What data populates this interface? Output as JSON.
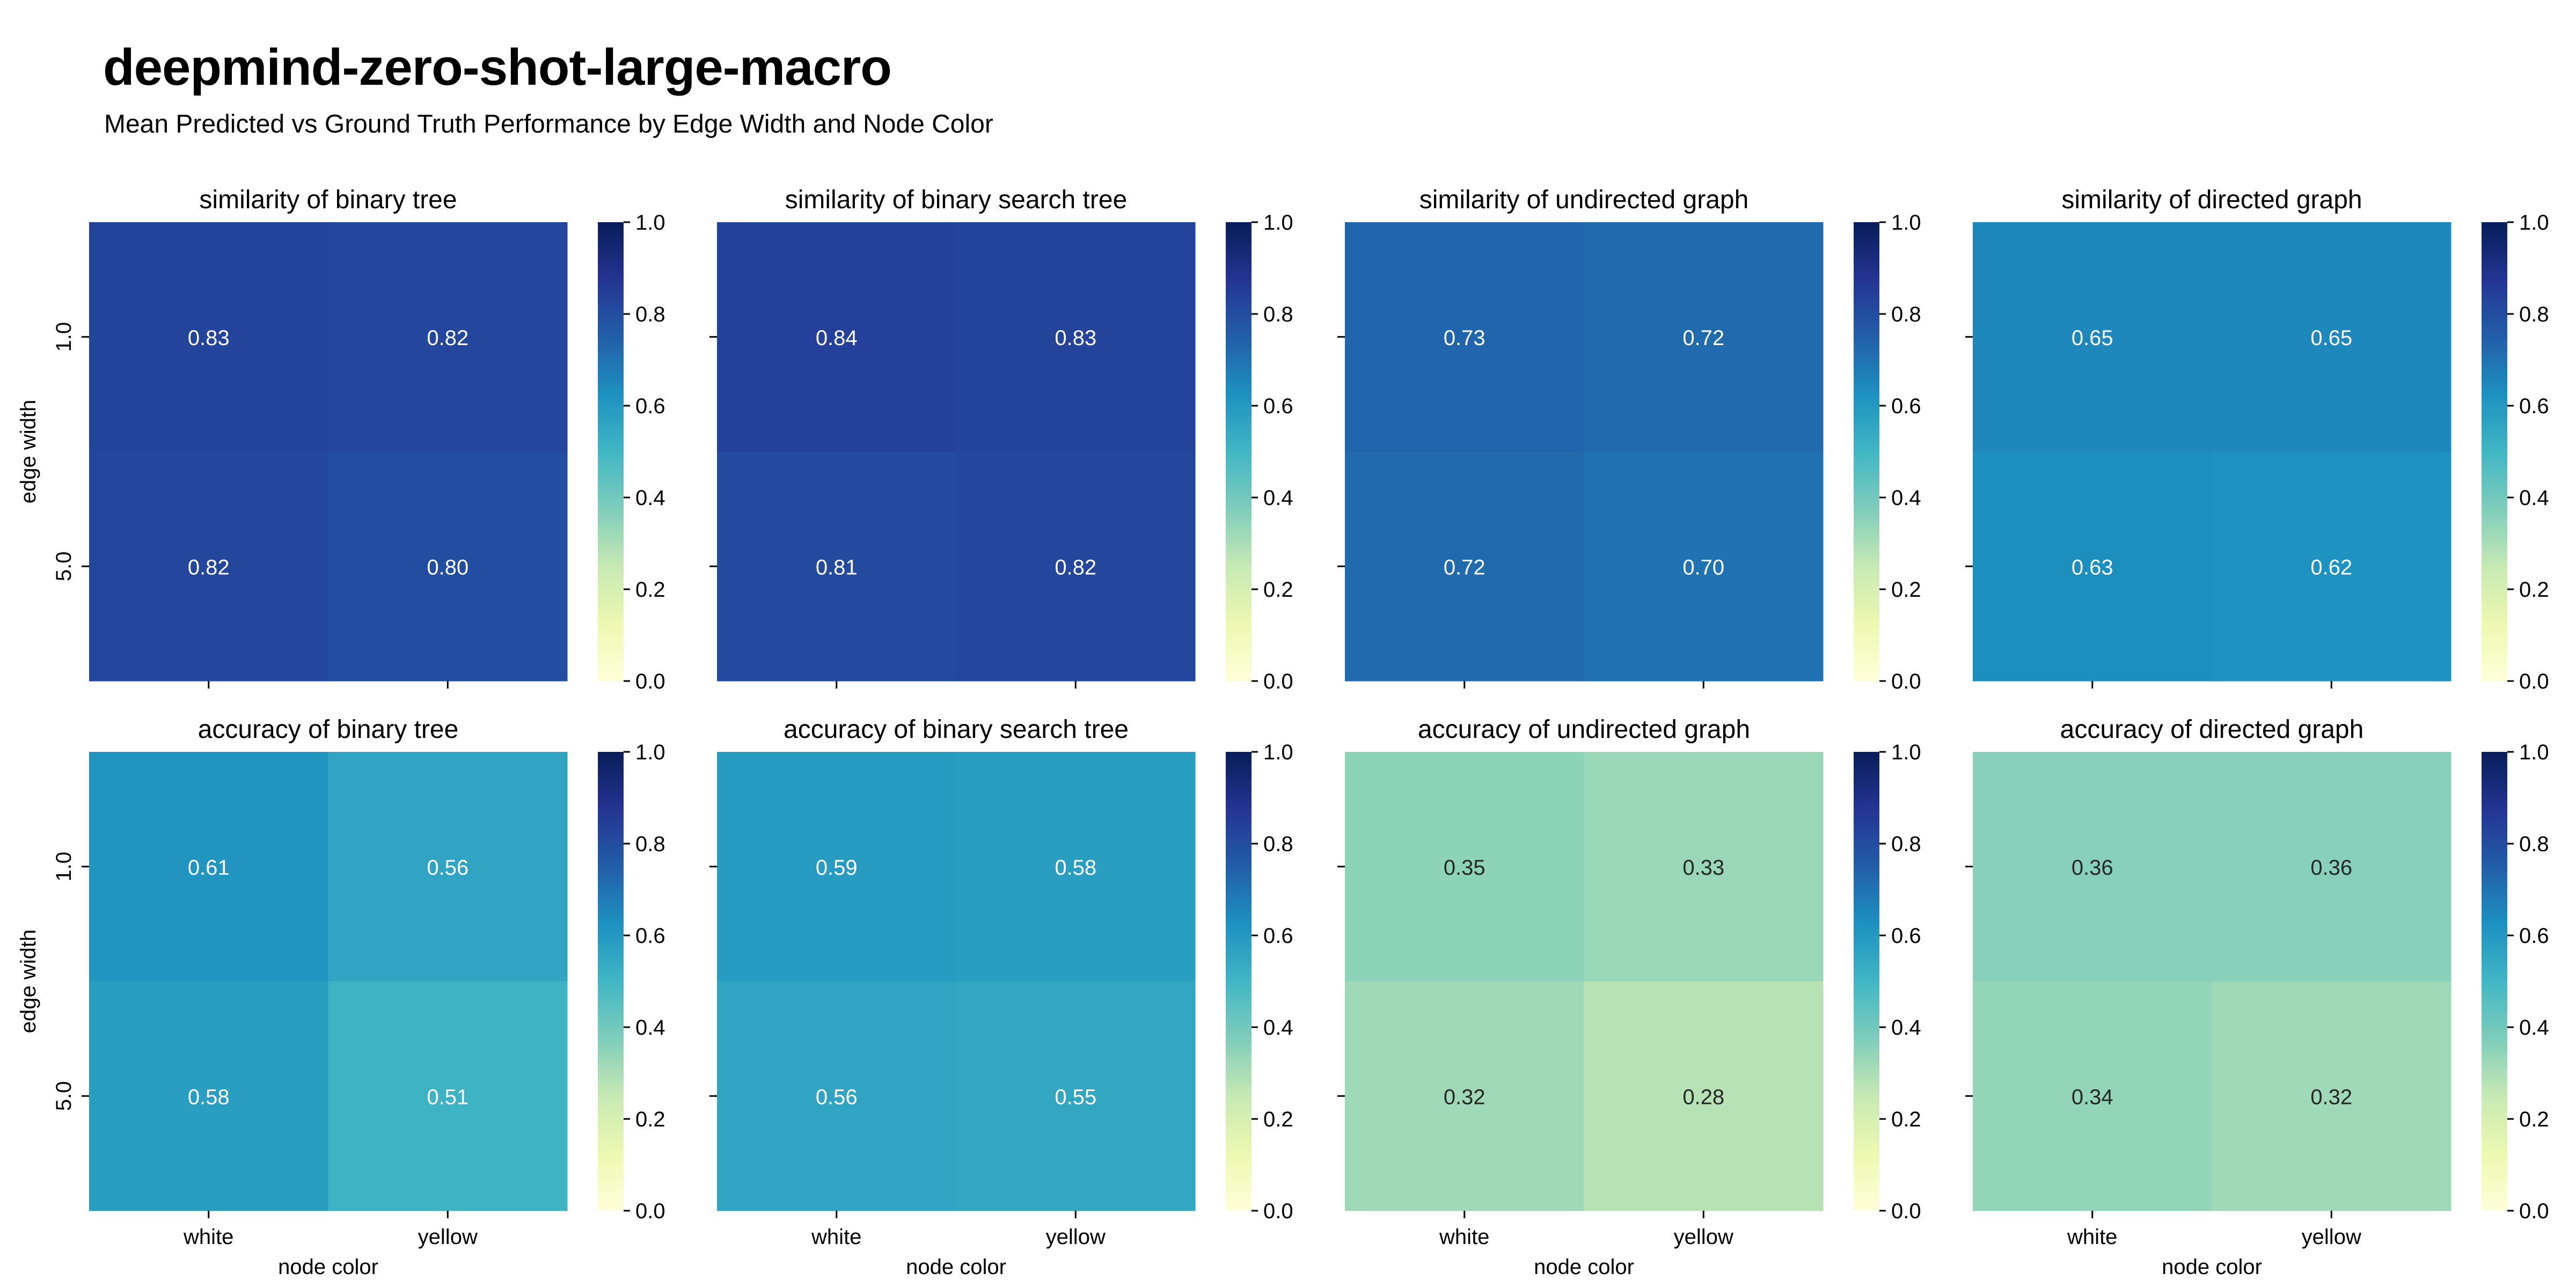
{
  "title": "deepmind-zero-shot-large-macro",
  "subtitle": "Mean Predicted vs Ground Truth Performance by Edge Width and Node Color",
  "chart_data": {
    "type": "heatmap",
    "rows": [
      "1.0",
      "5.0"
    ],
    "cols": [
      "white",
      "yellow"
    ],
    "xlabel": "node color",
    "ylabel": "edge width",
    "colormap": "YlGnBu",
    "vmin": 0.0,
    "vmax": 1.0,
    "colorbar_ticks": [
      "0.0",
      "0.2",
      "0.4",
      "0.6",
      "0.8",
      "1.0"
    ],
    "panels": [
      {
        "title": "similarity of binary tree",
        "values": [
          [
            0.83,
            0.82
          ],
          [
            0.82,
            0.8
          ]
        ],
        "labels": [
          [
            "0.83",
            "0.82"
          ],
          [
            "0.82",
            "0.80"
          ]
        ]
      },
      {
        "title": "similarity of binary search tree",
        "values": [
          [
            0.84,
            0.83
          ],
          [
            0.81,
            0.82
          ]
        ],
        "labels": [
          [
            "0.84",
            "0.83"
          ],
          [
            "0.81",
            "0.82"
          ]
        ]
      },
      {
        "title": "similarity of undirected graph",
        "values": [
          [
            0.73,
            0.72
          ],
          [
            0.72,
            0.7
          ]
        ],
        "labels": [
          [
            "0.73",
            "0.72"
          ],
          [
            "0.72",
            "0.70"
          ]
        ]
      },
      {
        "title": "similarity of directed graph",
        "values": [
          [
            0.65,
            0.65
          ],
          [
            0.63,
            0.62
          ]
        ],
        "labels": [
          [
            "0.65",
            "0.65"
          ],
          [
            "0.63",
            "0.62"
          ]
        ]
      },
      {
        "title": "accuracy of binary tree",
        "values": [
          [
            0.61,
            0.56
          ],
          [
            0.58,
            0.51
          ]
        ],
        "labels": [
          [
            "0.61",
            "0.56"
          ],
          [
            "0.58",
            "0.51"
          ]
        ]
      },
      {
        "title": "accuracy of binary search tree",
        "values": [
          [
            0.59,
            0.58
          ],
          [
            0.56,
            0.55
          ]
        ],
        "labels": [
          [
            "0.59",
            "0.58"
          ],
          [
            "0.56",
            "0.55"
          ]
        ]
      },
      {
        "title": "accuracy of undirected graph",
        "values": [
          [
            0.35,
            0.33
          ],
          [
            0.32,
            0.28
          ]
        ],
        "labels": [
          [
            "0.35",
            "0.33"
          ],
          [
            "0.32",
            "0.28"
          ]
        ]
      },
      {
        "title": "accuracy of directed graph",
        "values": [
          [
            0.36,
            0.36
          ],
          [
            0.34,
            0.32
          ]
        ],
        "labels": [
          [
            "0.36",
            "0.36"
          ],
          [
            "0.34",
            "0.32"
          ]
        ]
      }
    ]
  }
}
